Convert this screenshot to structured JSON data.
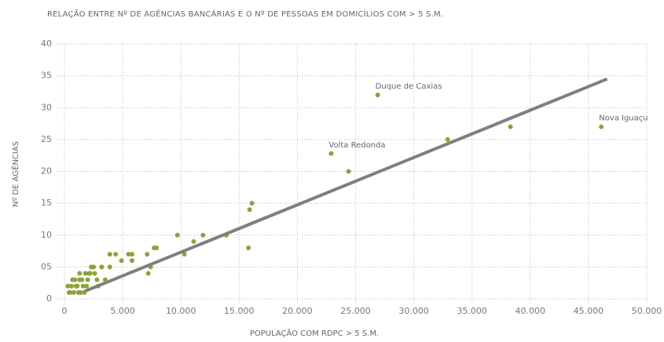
{
  "chart_data": {
    "type": "scatter",
    "title": "RELAÇÃO ENTRE Nº DE AGÊNCIAS BANCÁRIAS E O Nº  DE PESSOAS EM DOMICÍLIOS COM > 5 S.M.",
    "x_label": "POPULAÇÃO COM RDPC > 5 S.M.",
    "y_label": "Nº DE AGÊNCIAS",
    "color": "#8ca33b",
    "series": [
      {
        "name": null,
        "color": "#8ca33b",
        "x": [
          26900,
          22900,
          46100,
          32900,
          38300,
          24400,
          16100,
          15900,
          15800,
          13900,
          11900,
          11100,
          10300,
          9700,
          7900,
          7700,
          7400,
          7100,
          7200,
          5800,
          5500,
          5800,
          4900,
          4400,
          3900,
          3900,
          3200,
          2900,
          2800,
          2500,
          2300,
          2100,
          2000,
          1800,
          1600,
          1500,
          1300,
          1200,
          1100,
          900,
          800,
          600,
          500,
          400,
          300,
          1400,
          1700,
          2200,
          2600,
          1000,
          1900,
          700,
          1300,
          3500
        ],
        "values": [
          32,
          22.8,
          27,
          25,
          27,
          20,
          15,
          14,
          8,
          10,
          10,
          9,
          7,
          10,
          8,
          8,
          5,
          7,
          4,
          7,
          7,
          6,
          6,
          7,
          7,
          5,
          5,
          2,
          3,
          5,
          5,
          4,
          3,
          4,
          2,
          3,
          4,
          1,
          2,
          3,
          1,
          2,
          1,
          1,
          2,
          1,
          1,
          4,
          4,
          2,
          2,
          3,
          3,
          3
        ],
        "labels": [
          "Duque de Caxias",
          "Volta Redonda",
          "Nova Iguaçu",
          null,
          null,
          null,
          null,
          null,
          null,
          null,
          null,
          null,
          null,
          null,
          null,
          null,
          null,
          null,
          null,
          null,
          null,
          null,
          null,
          null,
          null,
          null,
          null,
          null,
          null,
          null,
          null,
          null,
          null,
          null,
          null,
          null,
          null,
          null,
          null,
          null,
          null,
          null,
          null,
          null,
          null,
          null,
          null,
          null,
          null,
          null,
          null,
          null,
          null,
          null
        ]
      }
    ],
    "trendline": {
      "color": "#7f7f7f",
      "x": [
        1750,
        46600
      ],
      "y": [
        1.2,
        34.5
      ]
    },
    "xlim": [
      0,
      50000
    ],
    "ylim": [
      0,
      40
    ],
    "xticks": [
      0,
      {
        "value": 5000,
        "label": "5.000"
      },
      {
        "value": 10000,
        "label": "10.000"
      },
      {
        "value": 15000,
        "label": "15.000"
      },
      {
        "value": 20000,
        "label": "20.000"
      },
      {
        "value": 25000,
        "label": "25.000"
      },
      {
        "value": 30000,
        "label": "30.000"
      },
      {
        "value": 35000,
        "label": "35.000"
      },
      {
        "value": 40000,
        "label": "40.000"
      },
      {
        "value": 45000,
        "label": "45.000"
      },
      {
        "value": 50000,
        "label": "50.000"
      }
    ],
    "yticks": [
      0,
      {
        "value": 5,
        "label": "05"
      },
      10,
      15,
      20,
      25,
      30,
      35,
      40
    ],
    "grid": true
  }
}
